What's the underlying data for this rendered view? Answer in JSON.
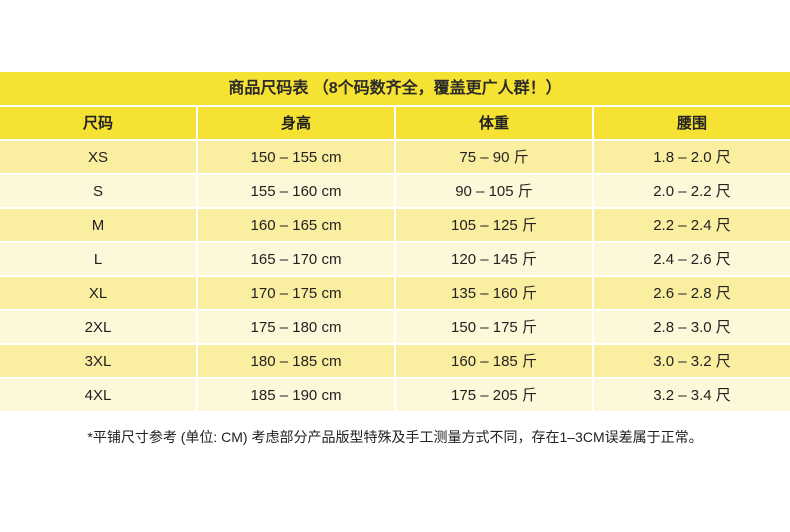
{
  "title": "商品尺码表 （8个码数齐全，覆盖更广人群！）",
  "columns": [
    "尺码",
    "身高",
    "体重",
    "腰围"
  ],
  "rows": [
    [
      "XS",
      "150 – 155 cm",
      "75 – 90 斤",
      "1.8 – 2.0 尺"
    ],
    [
      "S",
      "155 – 160 cm",
      "90 – 105 斤",
      "2.0 – 2.2 尺"
    ],
    [
      "M",
      "160 – 165 cm",
      "105 – 125 斤",
      "2.2 – 2.4 尺"
    ],
    [
      "L",
      "165 – 170 cm",
      "120 – 145 斤",
      "2.4 – 2.6 尺"
    ],
    [
      "XL",
      "170 – 175 cm",
      "135 – 160 斤",
      "2.6 – 2.8 尺"
    ],
    [
      "2XL",
      "175 – 180 cm",
      "150 – 175 斤",
      "2.8 – 3.0 尺"
    ],
    [
      "3XL",
      "180 – 185 cm",
      "160 – 185 斤",
      "3.0 – 3.2 尺"
    ],
    [
      "4XL",
      "185 – 190 cm",
      "175 – 205 斤",
      "3.2 – 3.4 尺"
    ]
  ],
  "note": "*平铺尺寸参考 (单位: CM) 考虑部分产品版型特殊及手工测量方式不同，存在1–3CM误差属于正常。",
  "colors": {
    "header": "#f6e232",
    "row_dark": "#faeea1",
    "row_light": "#fdf8d9"
  }
}
